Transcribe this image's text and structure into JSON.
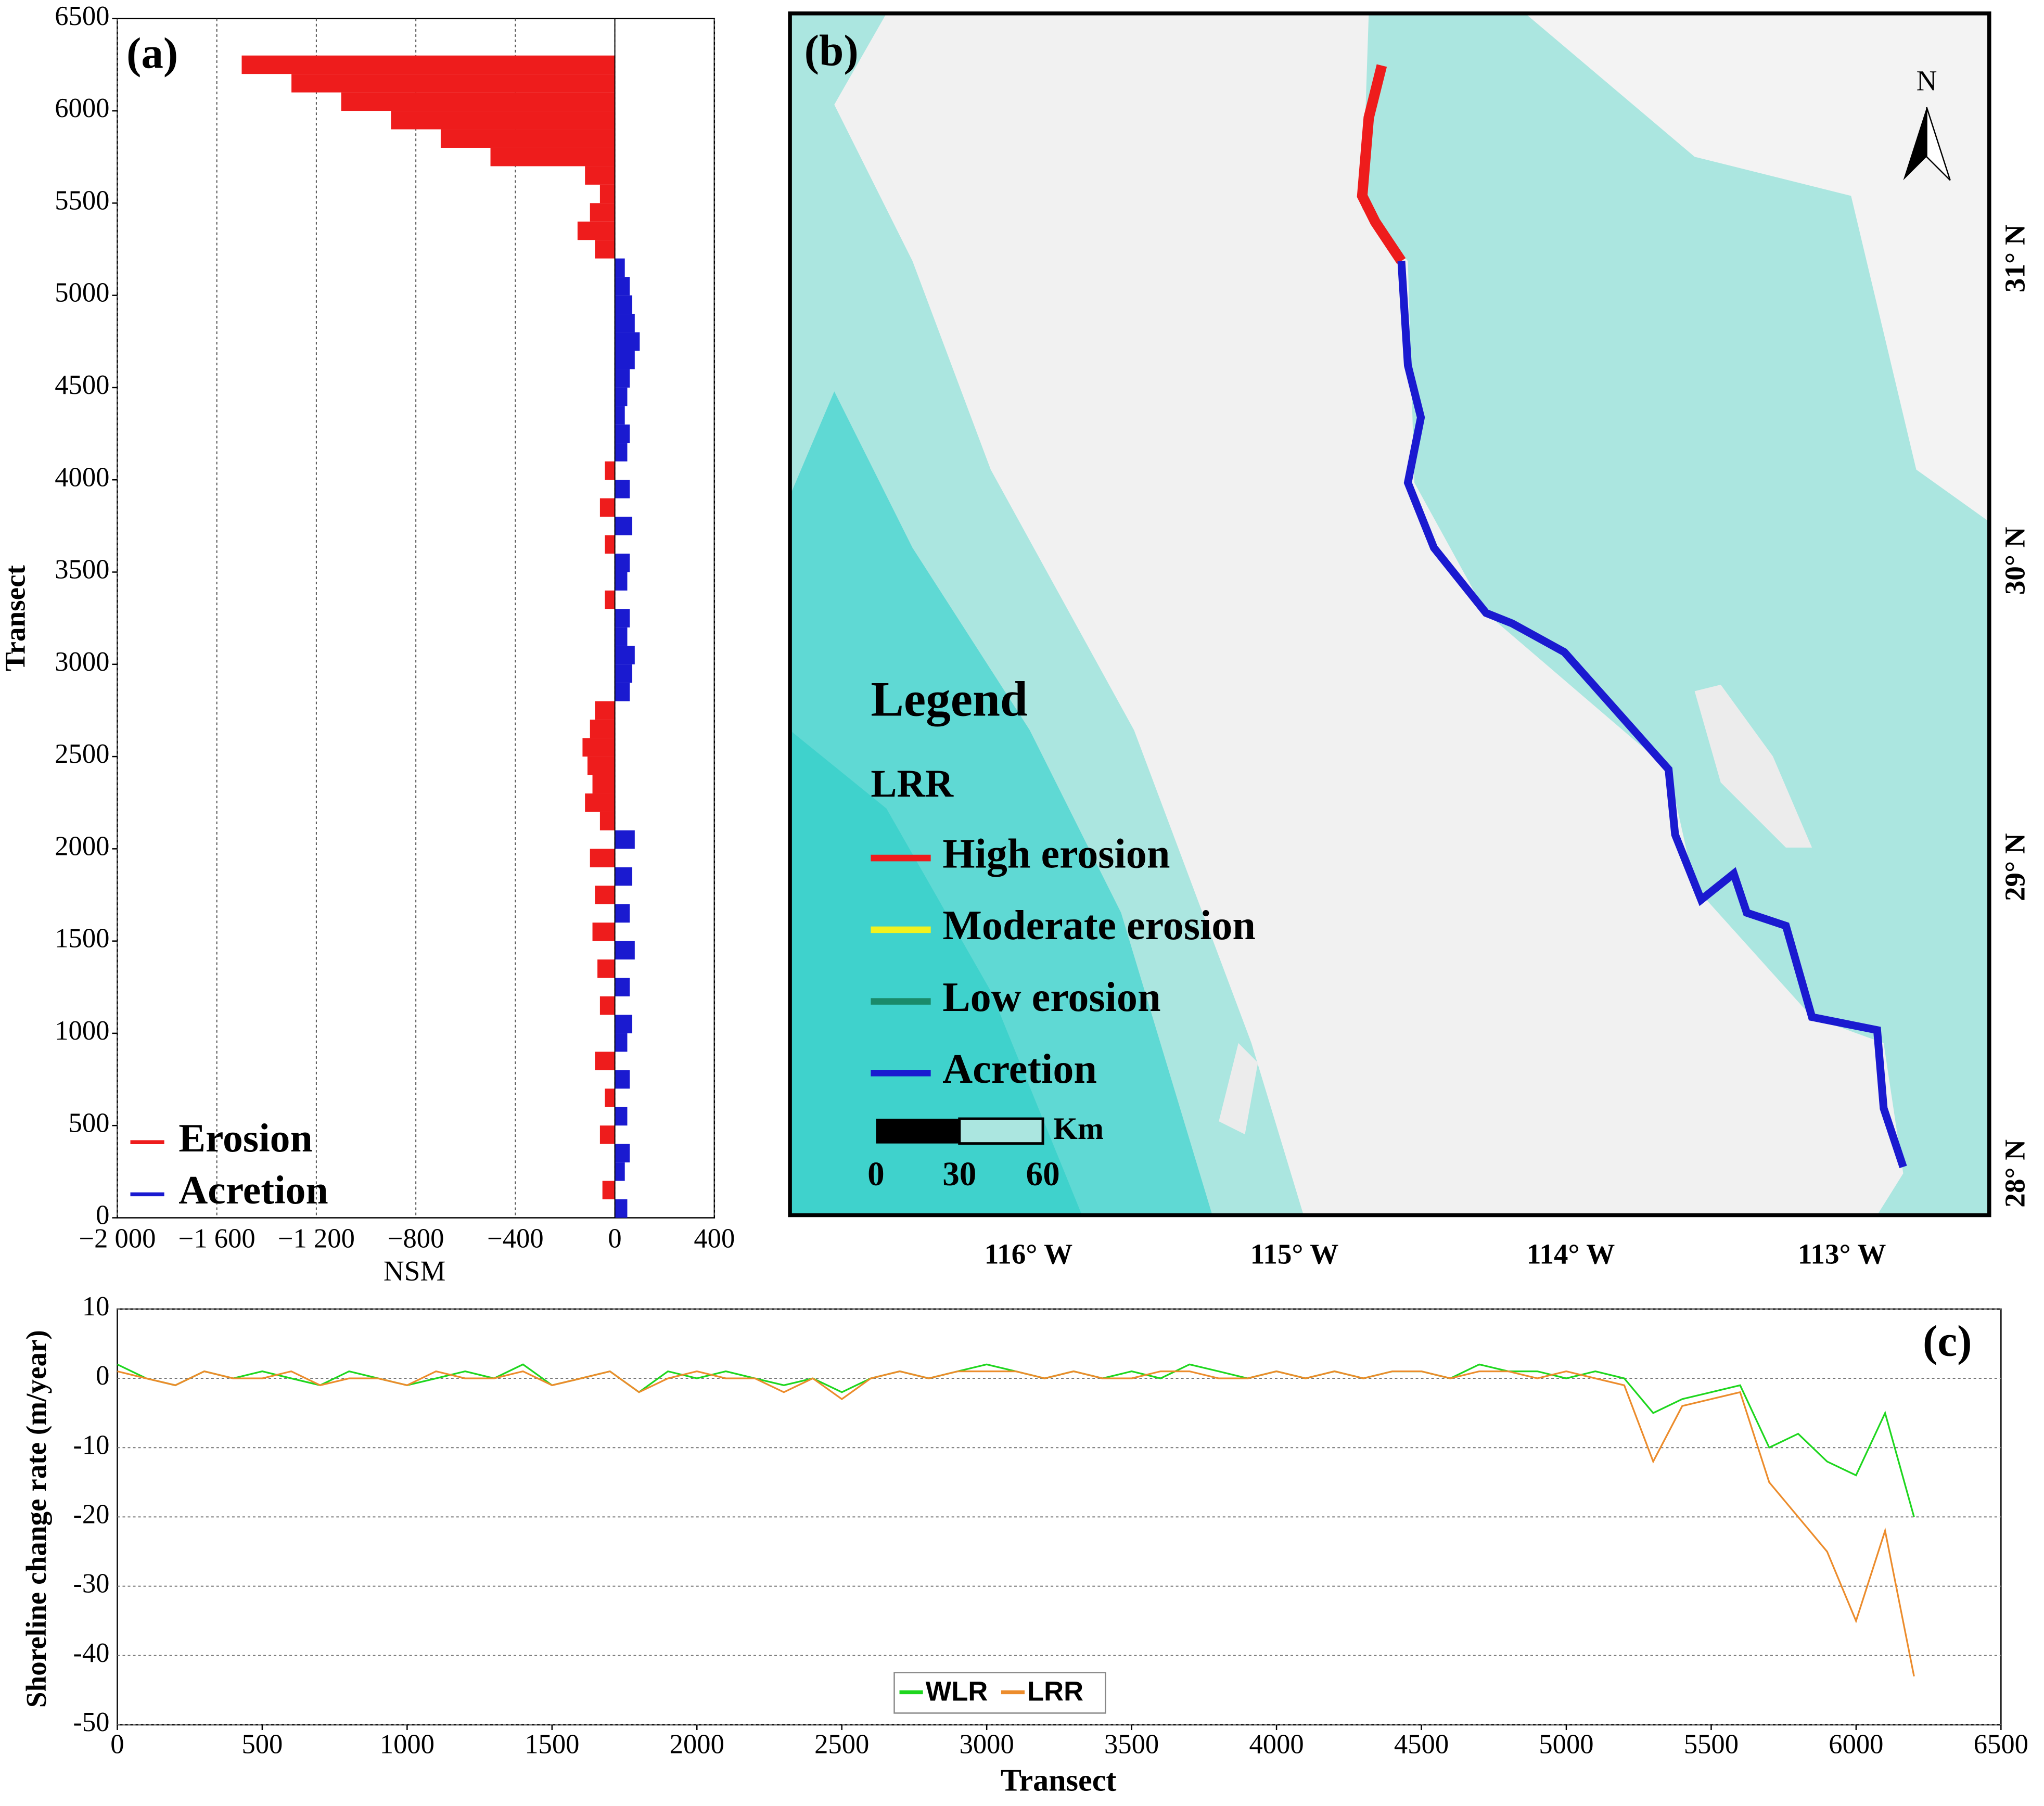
{
  "chart_data": [
    {
      "type": "bar",
      "orientation": "horizontal",
      "label": "(a)",
      "x_label": "NSM",
      "y_label": "Transect",
      "x": [
        0,
        100,
        200,
        300,
        400,
        500,
        600,
        700,
        800,
        900,
        1000,
        1100,
        1200,
        1300,
        1400,
        1500,
        1600,
        1700,
        1800,
        1900,
        2000,
        2100,
        2200,
        2300,
        2400,
        2500,
        2600,
        2700,
        2800,
        2900,
        3000,
        3100,
        3200,
        3300,
        3400,
        3500,
        3600,
        3700,
        3800,
        3900,
        4000,
        4100,
        4200,
        4300,
        4400,
        4500,
        4600,
        4700,
        4800,
        4900,
        5000,
        5100,
        5200,
        5300,
        5400,
        5500,
        5600,
        5700,
        5800,
        5900,
        6000,
        6100,
        6200
      ],
      "series": [
        {
          "name": "Erosion",
          "color": "#ee1c1c",
          "values": [
            null,
            -50,
            null,
            null,
            -60,
            null,
            -40,
            null,
            -80,
            null,
            null,
            -60,
            null,
            -70,
            null,
            -90,
            null,
            -80,
            null,
            -100,
            null,
            -60,
            -120,
            -90,
            -110,
            -130,
            -100,
            -80,
            null,
            null,
            null,
            null,
            null,
            -40,
            null,
            null,
            -40,
            null,
            -60,
            null,
            -40,
            null,
            null,
            null,
            null,
            null,
            null,
            null,
            null,
            null,
            null,
            null,
            -80,
            -150,
            -100,
            -60,
            -120,
            -500,
            -700,
            -900,
            -1100,
            -1300,
            -1500
          ]
        },
        {
          "name": "Acretion",
          "color": "#1a1ad0",
          "values": [
            50,
            null,
            40,
            60,
            null,
            50,
            null,
            60,
            null,
            50,
            70,
            null,
            60,
            null,
            80,
            null,
            60,
            null,
            70,
            null,
            80,
            null,
            null,
            null,
            null,
            null,
            null,
            null,
            60,
            70,
            80,
            50,
            60,
            null,
            50,
            60,
            null,
            70,
            null,
            60,
            null,
            50,
            60,
            40,
            50,
            60,
            80,
            100,
            80,
            70,
            60,
            40,
            null,
            null,
            null,
            null,
            null,
            null,
            null,
            null,
            null,
            null,
            null
          ]
        }
      ],
      "xlim": [
        -2000,
        400
      ],
      "xticks": [
        {
          "value": -2000,
          "label": "−2 000"
        },
        {
          "value": -1600,
          "label": "−1 600"
        },
        {
          "value": -1200,
          "label": "−1 200"
        },
        {
          "value": -800,
          "label": "−800"
        },
        {
          "value": -400,
          "label": "−400"
        },
        0,
        400
      ],
      "ylim": [
        0,
        6500
      ],
      "yticks": [
        0,
        500,
        1000,
        1500,
        2000,
        2500,
        3000,
        3500,
        4000,
        4500,
        5000,
        5500,
        6000,
        6500
      ],
      "grid": "x",
      "legend": "lower left"
    },
    {
      "type": "line",
      "label": "(c)",
      "x_label": "Transect",
      "y_label": "Shoreline change rate (m/year)",
      "x": [
        0,
        100,
        200,
        300,
        400,
        500,
        600,
        700,
        800,
        900,
        1000,
        1100,
        1200,
        1300,
        1400,
        1500,
        1600,
        1700,
        1800,
        1900,
        2000,
        2100,
        2200,
        2300,
        2400,
        2500,
        2600,
        2700,
        2800,
        2900,
        3000,
        3100,
        3200,
        3300,
        3400,
        3500,
        3600,
        3700,
        3800,
        3900,
        4000,
        4100,
        4200,
        4300,
        4400,
        4500,
        4600,
        4700,
        4800,
        4900,
        5000,
        5100,
        5200,
        5300,
        5400,
        5500,
        5600,
        5700,
        5800,
        5900,
        6000,
        6100,
        6200
      ],
      "series": [
        {
          "name": "WLR",
          "color": "#1ed61e",
          "values": [
            2,
            0,
            -1,
            1,
            0,
            1,
            0,
            -1,
            1,
            0,
            -1,
            0,
            1,
            0,
            2,
            -1,
            0,
            1,
            -2,
            1,
            0,
            1,
            0,
            -1,
            0,
            -2,
            0,
            1,
            0,
            1,
            2,
            1,
            0,
            1,
            0,
            1,
            0,
            2,
            1,
            0,
            1,
            0,
            1,
            0,
            1,
            1,
            0,
            2,
            1,
            1,
            0,
            1,
            0,
            -5,
            -3,
            -2,
            -1,
            -10,
            -8,
            -12,
            -14,
            -5,
            -20
          ]
        },
        {
          "name": "LRR",
          "color": "#ec8c2c",
          "values": [
            1,
            0,
            -1,
            1,
            0,
            0,
            1,
            -1,
            0,
            0,
            -1,
            1,
            0,
            0,
            1,
            -1,
            0,
            1,
            -2,
            0,
            1,
            0,
            0,
            -2,
            0,
            -3,
            0,
            1,
            0,
            1,
            1,
            1,
            0,
            1,
            0,
            0,
            1,
            1,
            0,
            0,
            1,
            0,
            1,
            0,
            1,
            1,
            0,
            1,
            1,
            0,
            1,
            0,
            -1,
            -12,
            -4,
            -3,
            -2,
            -15,
            -20,
            -25,
            -35,
            -22,
            -43
          ]
        }
      ],
      "xlim": [
        0,
        6500
      ],
      "xticks": [
        0,
        500,
        1000,
        1500,
        2000,
        2500,
        3000,
        3500,
        4000,
        4500,
        5000,
        5500,
        6000,
        6500
      ],
      "ylim": [
        -50,
        10
      ],
      "yticks": [
        -50,
        -40,
        -30,
        -20,
        -10,
        0,
        10
      ],
      "grid": "y",
      "legend": "lower center"
    }
  ],
  "map": {
    "label": "(b)",
    "north": "N",
    "legend_title": "Legend",
    "legend_subtitle": "LRR",
    "legend_items": [
      {
        "name": "High erosion",
        "color": "#ee1c1c"
      },
      {
        "name": "Moderate erosion",
        "color": "#f2f21e"
      },
      {
        "name": "Low erosion",
        "color": "#1a8a6a"
      },
      {
        "name": "Acretion",
        "color": "#1a1ad0"
      }
    ],
    "scale_unit": "Km",
    "scale_labels": [
      0,
      30,
      60
    ],
    "lon_labels": [
      "116° W",
      "115° W",
      "114° W",
      "113° W"
    ],
    "lat_labels": [
      "31° N",
      "30° N",
      "29° N",
      "28° N"
    ]
  }
}
